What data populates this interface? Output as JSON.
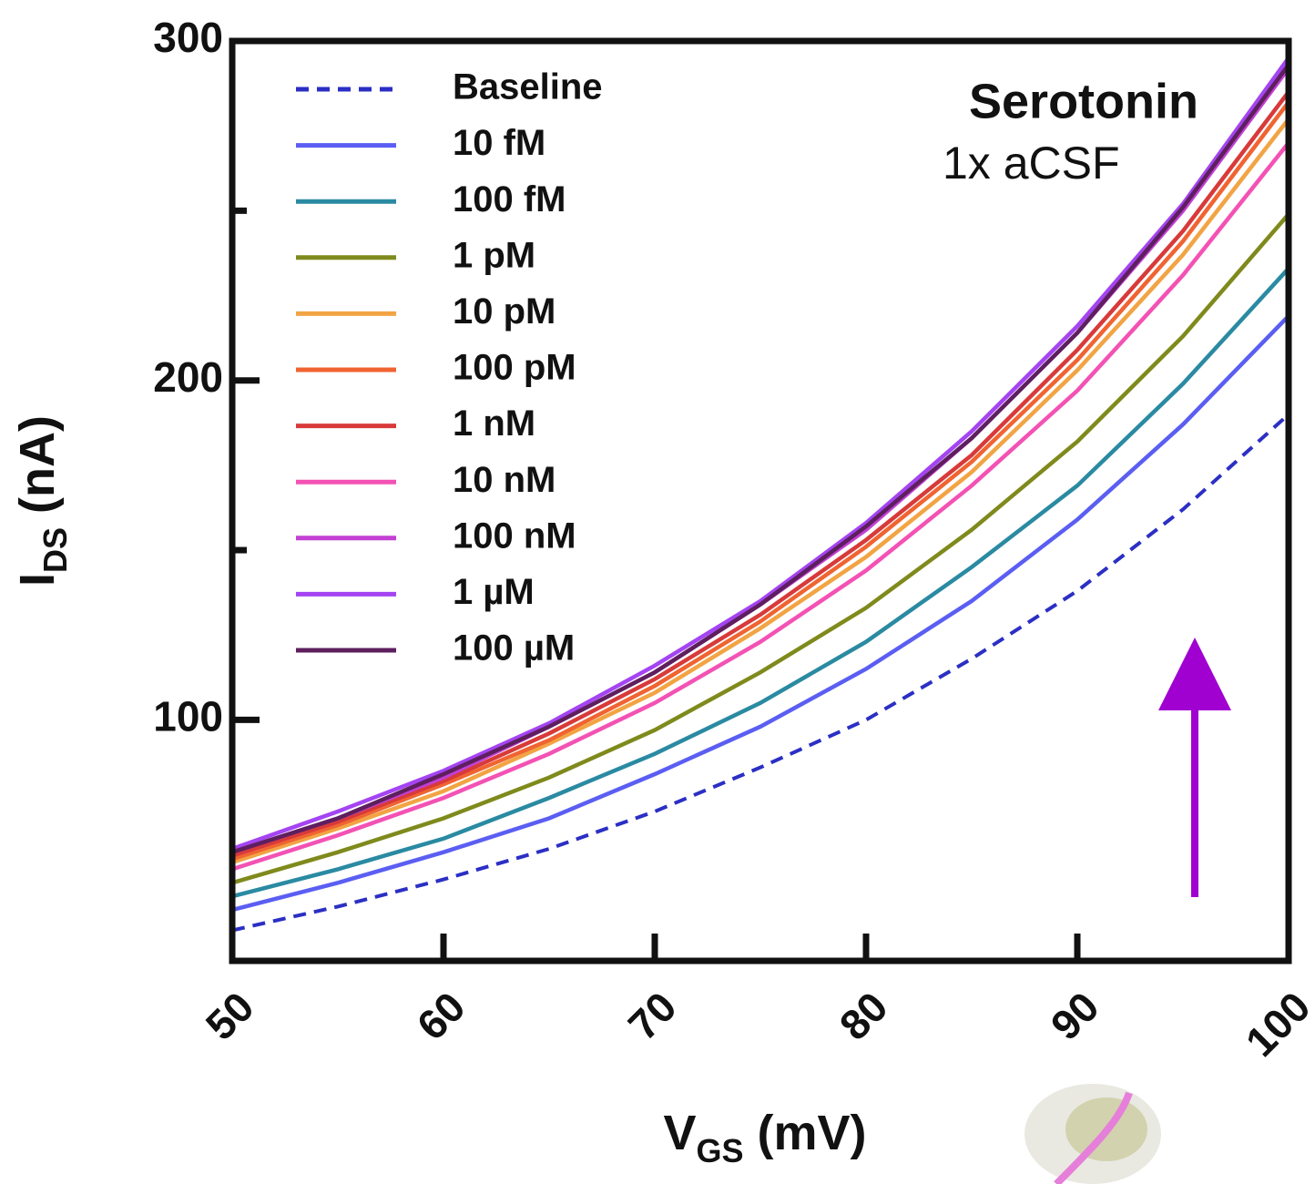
{
  "chart_data": {
    "type": "line",
    "x": [
      50,
      55,
      60,
      65,
      70,
      75,
      80,
      85,
      90,
      95,
      100
    ],
    "xlim": [
      50,
      100
    ],
    "xticks": [
      50,
      60,
      70,
      80,
      90,
      100
    ],
    "ylim": [
      29,
      300
    ],
    "yticks": [
      100,
      200,
      300
    ],
    "yminorticks": [
      150,
      250
    ],
    "xlabel": [
      "V",
      "GS",
      " (mV)"
    ],
    "ylabel": [
      "I",
      "DS",
      " (nA)"
    ],
    "annotations": [
      "Serotonin",
      "1x aCSF"
    ],
    "legend": "upper left",
    "series": [
      {
        "name": "Baseline",
        "color": "#2b2fc4",
        "dash": true,
        "values": [
          38,
          45,
          53,
          62,
          73,
          86,
          100,
          118,
          138,
          162,
          190
        ]
      },
      {
        "name": "10 fM",
        "color": "#5b5ef2",
        "values": [
          44,
          52,
          61,
          71,
          84,
          98,
          115,
          135,
          159,
          187,
          219
        ]
      },
      {
        "name": "100 fM",
        "color": "#2a8aa2",
        "values": [
          48,
          56,
          65,
          77,
          90,
          105,
          123,
          145,
          169,
          199,
          233
        ]
      },
      {
        "name": "1 pM",
        "color": "#7f8a1c",
        "values": [
          52,
          61,
          71,
          83,
          97,
          114,
          133,
          156,
          182,
          213,
          249
        ]
      },
      {
        "name": "10 pM",
        "color": "#f2a444",
        "values": [
          58,
          68,
          79,
          93,
          108,
          127,
          148,
          173,
          203,
          237,
          277
        ]
      },
      {
        "name": "100 pM",
        "color": "#f06432",
        "values": [
          59,
          69,
          81,
          94,
          110,
          129,
          151,
          176,
          206,
          241,
          282
        ]
      },
      {
        "name": "1 nM",
        "color": "#d83a3a",
        "values": [
          60,
          70,
          82,
          96,
          112,
          131,
          153,
          178,
          209,
          244,
          285
        ]
      },
      {
        "name": "10 nM",
        "color": "#f352b4",
        "values": [
          56,
          66,
          77,
          90,
          105,
          123,
          144,
          169,
          197,
          231,
          270
        ]
      },
      {
        "name": "100 nM",
        "color": "#c23fd2",
        "values": [
          61,
          71,
          83,
          98,
          114,
          134,
          156,
          183,
          214,
          250,
          292
        ]
      },
      {
        "name": "1 µM",
        "color": "#a444f2",
        "values": [
          62,
          73,
          85,
          99,
          116,
          135,
          158,
          185,
          216,
          252,
          295
        ]
      },
      {
        "name": "100 µM",
        "color": "#5e1f5e",
        "values": [
          61,
          71,
          84,
          98,
          114,
          134,
          157,
          183,
          214,
          251,
          293
        ]
      }
    ]
  }
}
